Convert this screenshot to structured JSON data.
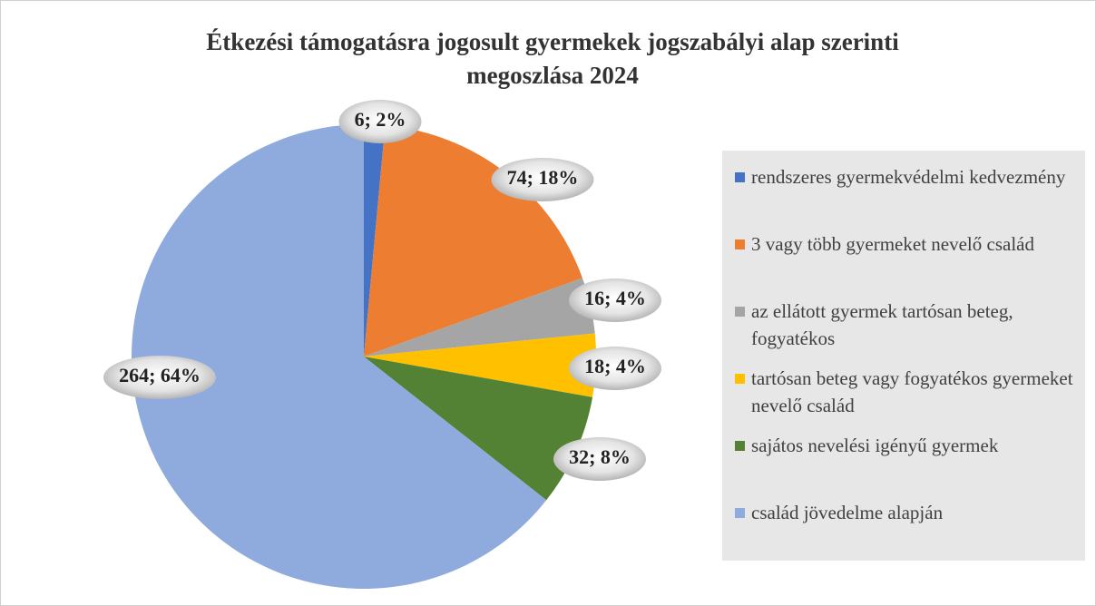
{
  "chart_data": {
    "type": "pie",
    "title": "Étkezési támogatásra jogosult gyermekek jogszabályi alap szerinti megoszlása 2024",
    "categories": [
      "rendszeres gyermekvédelmi kedvezmény",
      "3 vagy több gyermeket nevelő család",
      "az ellátott gyermek tartósan beteg, fogyatékos",
      "tartósan beteg vagy fogyatékos gyermeket nevelő család",
      "sajátos nevelési igényű gyermek",
      "család jövedelme alapján"
    ],
    "values": [
      6,
      74,
      16,
      18,
      32,
      264
    ],
    "value_labels": [
      "6; 2%",
      "74; 18%",
      "16; 4%",
      "18; 4%",
      "32; 8%",
      "264; 64%"
    ],
    "colors": [
      "#4472c4",
      "#ed7d31",
      "#a5a5a5",
      "#ffc000",
      "#548235",
      "#8faadc"
    ],
    "legend": "right"
  }
}
